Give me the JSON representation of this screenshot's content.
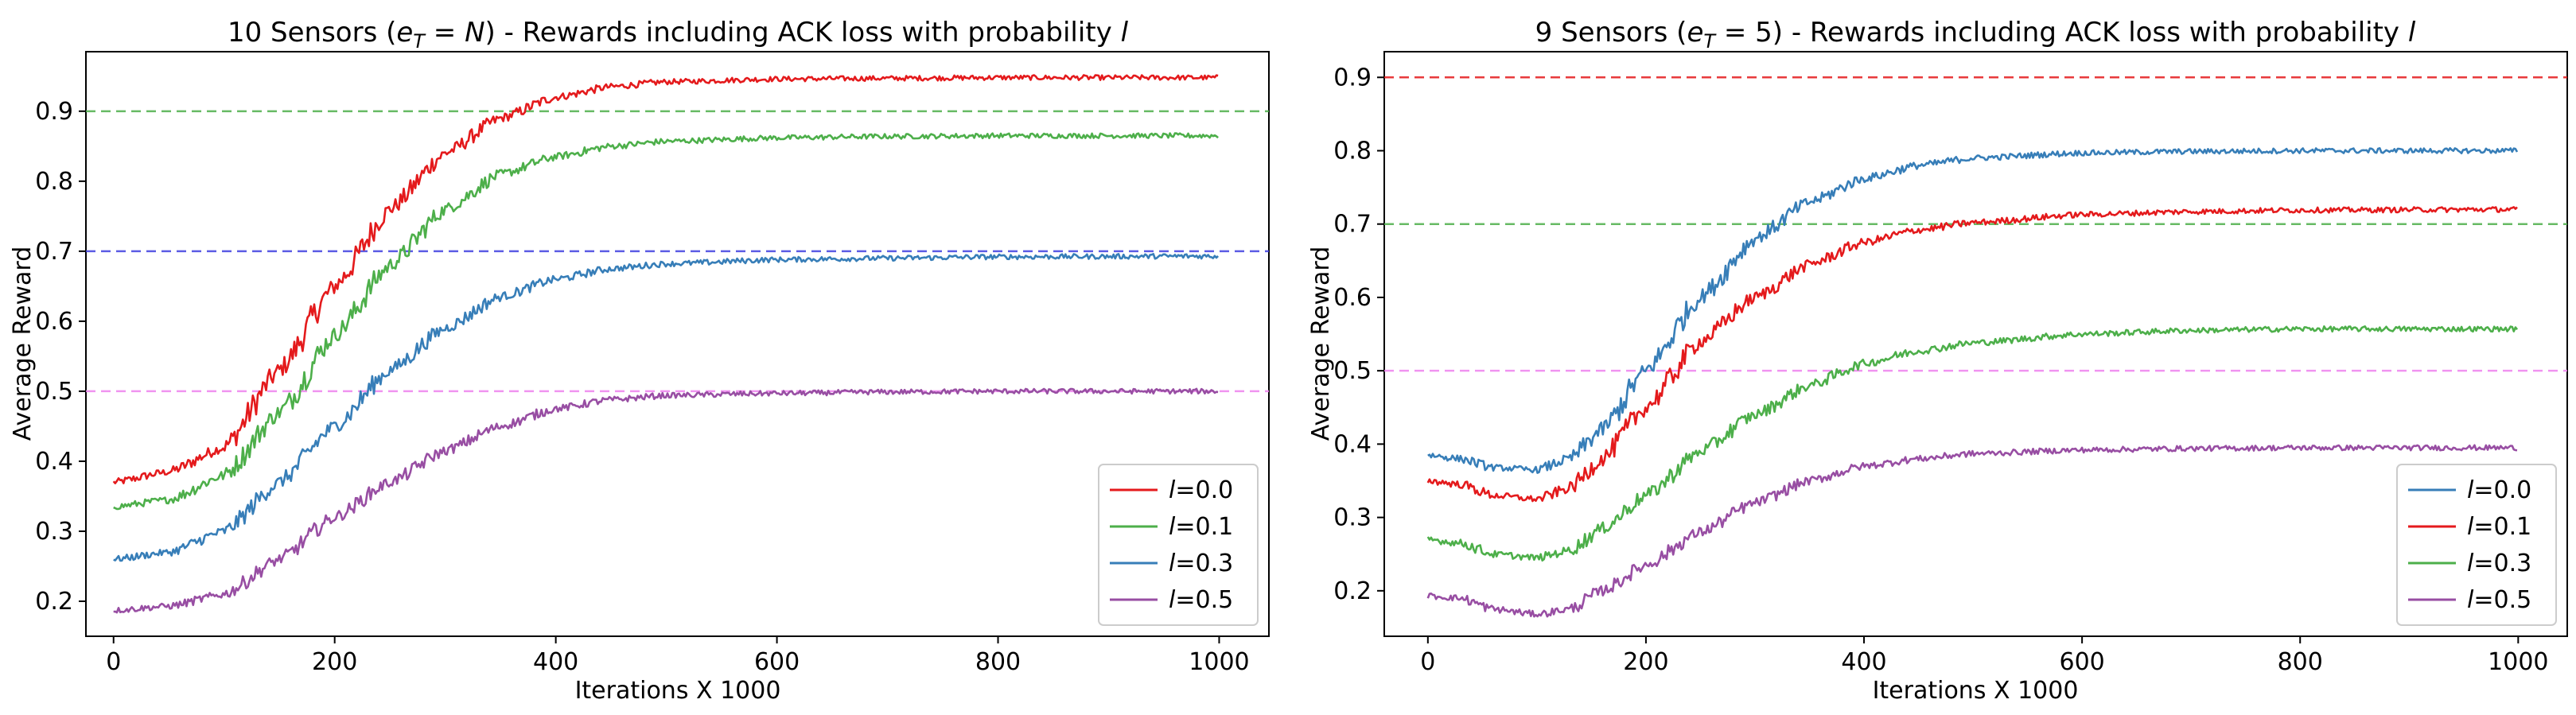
{
  "chart_data": [
    {
      "type": "line",
      "title": "10 Sensors (e_T = N) - Rewards including ACK loss with probability l",
      "title_parts": {
        "prefix": "10 Sensors (",
        "e": "e",
        "sub": "T",
        "mid": " = ",
        "var": "N",
        "suffix": ") - Rewards including ACK loss with probability ",
        "l": "l"
      },
      "xlabel": "Iterations X 1000",
      "ylabel": "Average Reward",
      "xlim": [
        -25,
        1045
      ],
      "ylim": [
        0.15,
        0.985
      ],
      "xticks": [
        0,
        200,
        400,
        600,
        800,
        1000
      ],
      "xtick_labels": [
        "0",
        "200",
        "400",
        "600",
        "800",
        "1000"
      ],
      "yticks": [
        0.2,
        0.3,
        0.4,
        0.5,
        0.6,
        0.7,
        0.8,
        0.9
      ],
      "ytick_labels": [
        "0.2",
        "0.3",
        "0.4",
        "0.5",
        "0.6",
        "0.7",
        "0.8",
        "0.9"
      ],
      "legend_position": "lower-right",
      "hlines": [
        {
          "y": 0.9,
          "color": "#4daf4a"
        },
        {
          "y": 0.7,
          "color": "#4040e0"
        },
        {
          "y": 0.5,
          "color": "#ee82ee"
        }
      ],
      "series": [
        {
          "name": "l=0.0",
          "prefix": "l",
          "value_label": "=0.0",
          "color": "#e41a1c",
          "start": 0.375,
          "end": 0.948,
          "mid": 200,
          "dip_x": 0,
          "dip_depth": 0,
          "points": [
            [
              0,
              0.37
            ],
            [
              50,
              0.385
            ],
            [
              100,
              0.42
            ],
            [
              150,
              0.53
            ],
            [
              200,
              0.65
            ],
            [
              250,
              0.76
            ],
            [
              300,
              0.84
            ],
            [
              350,
              0.89
            ],
            [
              400,
              0.92
            ],
            [
              450,
              0.935
            ],
            [
              500,
              0.942
            ],
            [
              600,
              0.946
            ],
            [
              700,
              0.947
            ],
            [
              800,
              0.948
            ],
            [
              1000,
              0.948
            ]
          ]
        },
        {
          "name": "l=0.1",
          "prefix": "l",
          "value_label": "=0.1",
          "color": "#4daf4a",
          "start": 0.335,
          "end": 0.865,
          "points": [
            [
              0,
              0.335
            ],
            [
              50,
              0.345
            ],
            [
              100,
              0.38
            ],
            [
              150,
              0.47
            ],
            [
              200,
              0.58
            ],
            [
              250,
              0.68
            ],
            [
              300,
              0.76
            ],
            [
              350,
              0.81
            ],
            [
              400,
              0.835
            ],
            [
              450,
              0.85
            ],
            [
              500,
              0.857
            ],
            [
              600,
              0.862
            ],
            [
              700,
              0.864
            ],
            [
              800,
              0.865
            ],
            [
              1000,
              0.865
            ]
          ]
        },
        {
          "name": "l=0.3",
          "prefix": "l",
          "value_label": "=0.3",
          "color": "#377eb8",
          "start": 0.26,
          "end": 0.693,
          "points": [
            [
              0,
              0.26
            ],
            [
              50,
              0.27
            ],
            [
              100,
              0.3
            ],
            [
              150,
              0.37
            ],
            [
              200,
              0.45
            ],
            [
              250,
              0.53
            ],
            [
              300,
              0.59
            ],
            [
              350,
              0.635
            ],
            [
              400,
              0.66
            ],
            [
              450,
              0.675
            ],
            [
              500,
              0.682
            ],
            [
              600,
              0.688
            ],
            [
              700,
              0.69
            ],
            [
              800,
              0.692
            ],
            [
              1000,
              0.693
            ]
          ]
        },
        {
          "name": "l=0.5",
          "prefix": "l",
          "value_label": "=0.5",
          "color": "#984ea3",
          "start": 0.187,
          "end": 0.5,
          "points": [
            [
              0,
              0.187
            ],
            [
              50,
              0.193
            ],
            [
              100,
              0.21
            ],
            [
              150,
              0.26
            ],
            [
              200,
              0.32
            ],
            [
              250,
              0.37
            ],
            [
              300,
              0.415
            ],
            [
              350,
              0.45
            ],
            [
              400,
              0.475
            ],
            [
              450,
              0.488
            ],
            [
              500,
              0.494
            ],
            [
              600,
              0.497
            ],
            [
              700,
              0.499
            ],
            [
              800,
              0.5
            ],
            [
              1000,
              0.5
            ]
          ]
        }
      ]
    },
    {
      "type": "line",
      "title": "9 Sensors (e_T = 5) - Rewards including ACK loss with probability l",
      "title_parts": {
        "prefix": "9 Sensors (",
        "e": "e",
        "sub": "T",
        "mid": " = ",
        "var": "5",
        "suffix": ") - Rewards including ACK loss with probability ",
        "l": "l"
      },
      "xlabel": "Iterations X 1000",
      "ylabel": "Average Reward",
      "xlim": [
        -40,
        1045
      ],
      "ylim": [
        0.138,
        0.935
      ],
      "xticks": [
        0,
        200,
        400,
        600,
        800,
        1000
      ],
      "xtick_labels": [
        "0",
        "200",
        "400",
        "600",
        "800",
        "1000"
      ],
      "yticks": [
        0.2,
        0.3,
        0.4,
        0.5,
        0.6,
        0.7,
        0.8,
        0.9
      ],
      "ytick_labels": [
        "0.2",
        "0.3",
        "0.4",
        "0.5",
        "0.6",
        "0.7",
        "0.8",
        "0.9"
      ],
      "legend_position": "lower-right",
      "hlines": [
        {
          "y": 0.9,
          "color": "#e41a1c"
        },
        {
          "y": 0.7,
          "color": "#4daf4a"
        },
        {
          "y": 0.5,
          "color": "#ee82ee"
        }
      ],
      "series": [
        {
          "name": "l=0.0",
          "prefix": "l",
          "value_label": "=0.0",
          "color": "#377eb8",
          "points": [
            [
              0,
              0.385
            ],
            [
              30,
              0.38
            ],
            [
              60,
              0.368
            ],
            [
              100,
              0.365
            ],
            [
              130,
              0.38
            ],
            [
              160,
              0.42
            ],
            [
              200,
              0.5
            ],
            [
              250,
              0.6
            ],
            [
              300,
              0.68
            ],
            [
              350,
              0.73
            ],
            [
              400,
              0.762
            ],
            [
              450,
              0.78
            ],
            [
              500,
              0.79
            ],
            [
              600,
              0.797
            ],
            [
              700,
              0.799
            ],
            [
              800,
              0.8
            ],
            [
              1000,
              0.8
            ]
          ]
        },
        {
          "name": "l=0.1",
          "prefix": "l",
          "value_label": "=0.1",
          "color": "#e41a1c",
          "points": [
            [
              0,
              0.35
            ],
            [
              30,
              0.345
            ],
            [
              60,
              0.33
            ],
            [
              100,
              0.325
            ],
            [
              130,
              0.34
            ],
            [
              160,
              0.38
            ],
            [
              200,
              0.45
            ],
            [
              250,
              0.54
            ],
            [
              300,
              0.6
            ],
            [
              350,
              0.645
            ],
            [
              400,
              0.675
            ],
            [
              450,
              0.692
            ],
            [
              500,
              0.702
            ],
            [
              600,
              0.713
            ],
            [
              700,
              0.717
            ],
            [
              800,
              0.719
            ],
            [
              1000,
              0.72
            ]
          ]
        },
        {
          "name": "l=0.3",
          "prefix": "l",
          "value_label": "=0.3",
          "color": "#4daf4a",
          "points": [
            [
              0,
              0.27
            ],
            [
              30,
              0.265
            ],
            [
              60,
              0.25
            ],
            [
              100,
              0.245
            ],
            [
              130,
              0.255
            ],
            [
              160,
              0.285
            ],
            [
              200,
              0.33
            ],
            [
              250,
              0.39
            ],
            [
              300,
              0.44
            ],
            [
              350,
              0.48
            ],
            [
              400,
              0.51
            ],
            [
              450,
              0.527
            ],
            [
              500,
              0.538
            ],
            [
              600,
              0.55
            ],
            [
              700,
              0.555
            ],
            [
              800,
              0.557
            ],
            [
              1000,
              0.557
            ]
          ]
        },
        {
          "name": "l=0.5",
          "prefix": "l",
          "value_label": "=0.5",
          "color": "#984ea3",
          "points": [
            [
              0,
              0.193
            ],
            [
              30,
              0.19
            ],
            [
              60,
              0.175
            ],
            [
              100,
              0.168
            ],
            [
              130,
              0.175
            ],
            [
              160,
              0.2
            ],
            [
              200,
              0.235
            ],
            [
              250,
              0.28
            ],
            [
              300,
              0.32
            ],
            [
              350,
              0.35
            ],
            [
              400,
              0.37
            ],
            [
              450,
              0.38
            ],
            [
              500,
              0.387
            ],
            [
              600,
              0.392
            ],
            [
              700,
              0.394
            ],
            [
              800,
              0.395
            ],
            [
              1000,
              0.395
            ]
          ]
        }
      ]
    }
  ]
}
